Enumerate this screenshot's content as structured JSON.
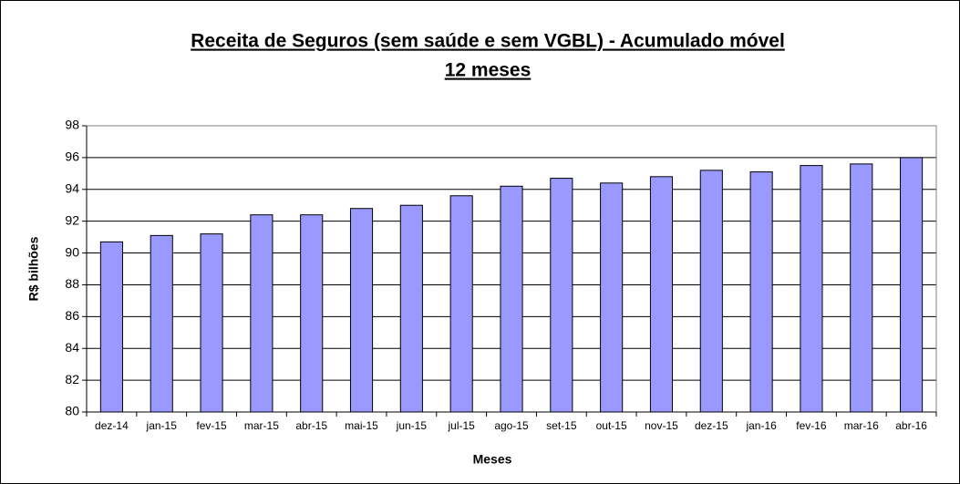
{
  "chart_data": {
    "type": "bar",
    "title": [
      "Receita de Seguros (sem saúde e sem VGBL) - Acumulado móvel",
      "12 meses"
    ],
    "x_label": "Meses",
    "y_label": "R$ bilhões",
    "categories": [
      "dez-14",
      "jan-15",
      "fev-15",
      "mar-15",
      "abr-15",
      "mai-15",
      "jun-15",
      "jul-15",
      "ago-15",
      "set-15",
      "out-15",
      "nov-15",
      "dez-15",
      "jan-16",
      "fev-16",
      "mar-16",
      "abr-16"
    ],
    "values": [
      90.7,
      91.1,
      91.2,
      92.4,
      92.4,
      92.8,
      93.0,
      93.6,
      94.2,
      94.7,
      94.4,
      94.8,
      95.2,
      95.1,
      95.5,
      95.6,
      96.0
    ],
    "color": "#9999ff",
    "ylim": [
      80,
      98
    ],
    "yticks": [
      80,
      82,
      84,
      86,
      88,
      90,
      92,
      94,
      96,
      98
    ],
    "grid": true
  }
}
